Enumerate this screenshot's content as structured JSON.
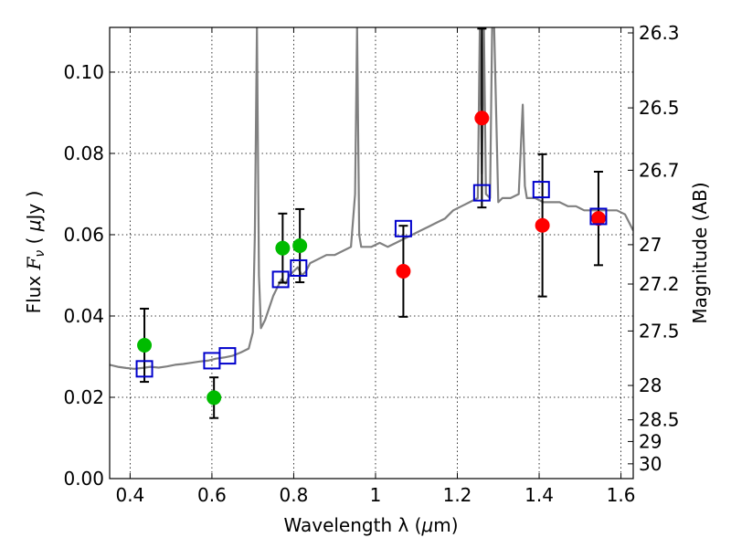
{
  "chart_data": {
    "type": "scatter",
    "title": "",
    "xlabel_prefix": "Wavelength  λ (",
    "xlabel_mu": "μ",
    "xlabel_suffix": "m)",
    "ylabel_prefix": "Flux  ",
    "ylabel_var": "F",
    "ylabel_sub": "ν",
    "ylabel_open": "  (  ",
    "ylabel_mu": "μ",
    "ylabel_suffix": "Jy )",
    "y2label": "Magnitude (AB)",
    "xlim": [
      0.35,
      1.63
    ],
    "ylim": [
      0.0,
      0.111
    ],
    "grid": true,
    "xticks": [
      0.4,
      0.6,
      0.8,
      1.0,
      1.2,
      1.4,
      1.6
    ],
    "xtick_labels": [
      "0.4",
      "0.6",
      "0.8",
      "1",
      "1.2",
      "1.4",
      "1.6"
    ],
    "yticks": [
      0.0,
      0.02,
      0.04,
      0.06,
      0.08,
      0.1
    ],
    "ytick_labels": [
      "0.00",
      "0.02",
      "0.04",
      "0.06",
      "0.08",
      "0.10"
    ],
    "mag_ticks": [
      26.3,
      26.5,
      26.7,
      27,
      27.2,
      27.5,
      28,
      28.5,
      29,
      30
    ],
    "mag_tick_labels": [
      "26.3",
      "26.5",
      "26.7",
      "27",
      "27.2",
      "27.5",
      "28",
      "28.5",
      "29",
      "30"
    ],
    "series": [
      {
        "type": "line",
        "color": "#808080",
        "x": [
          0.35,
          0.37,
          0.39,
          0.41,
          0.43,
          0.45,
          0.47,
          0.49,
          0.51,
          0.53,
          0.55,
          0.57,
          0.59,
          0.61,
          0.63,
          0.65,
          0.67,
          0.69,
          0.7,
          0.705,
          0.71,
          0.715,
          0.72,
          0.73,
          0.74,
          0.75,
          0.76,
          0.77,
          0.78,
          0.79,
          0.8,
          0.81,
          0.82,
          0.83,
          0.84,
          0.86,
          0.88,
          0.9,
          0.92,
          0.94,
          0.95,
          0.955,
          0.96,
          0.965,
          0.97,
          0.99,
          1.01,
          1.03,
          1.05,
          1.07,
          1.09,
          1.11,
          1.13,
          1.15,
          1.17,
          1.19,
          1.21,
          1.23,
          1.25,
          1.255,
          1.26,
          1.265,
          1.27,
          1.28,
          1.285,
          1.29,
          1.3,
          1.31,
          1.33,
          1.35,
          1.36,
          1.365,
          1.37,
          1.39,
          1.41,
          1.43,
          1.45,
          1.47,
          1.49,
          1.51,
          1.53,
          1.55,
          1.57,
          1.59,
          1.61,
          1.63
        ],
        "y": [
          0.028,
          0.0275,
          0.0272,
          0.027,
          0.0272,
          0.0275,
          0.0273,
          0.0276,
          0.028,
          0.0282,
          0.0285,
          0.0288,
          0.029,
          0.0295,
          0.0298,
          0.0302,
          0.031,
          0.032,
          0.036,
          0.06,
          0.111,
          0.05,
          0.037,
          0.039,
          0.042,
          0.045,
          0.047,
          0.049,
          0.048,
          0.05,
          0.051,
          0.052,
          0.05,
          0.051,
          0.053,
          0.054,
          0.055,
          0.055,
          0.056,
          0.057,
          0.07,
          0.111,
          0.06,
          0.057,
          0.057,
          0.057,
          0.058,
          0.057,
          0.058,
          0.059,
          0.06,
          0.061,
          0.062,
          0.063,
          0.064,
          0.066,
          0.067,
          0.068,
          0.069,
          0.111,
          0.075,
          0.111,
          0.07,
          0.069,
          0.111,
          0.111,
          0.068,
          0.069,
          0.069,
          0.07,
          0.092,
          0.072,
          0.069,
          0.069,
          0.068,
          0.068,
          0.068,
          0.067,
          0.067,
          0.066,
          0.066,
          0.066,
          0.066,
          0.066,
          0.065,
          0.061
        ]
      },
      {
        "type": "scatter",
        "marker": "circle",
        "color": "#00bb00",
        "x": [
          0.435,
          0.605,
          0.773,
          0.815
        ],
        "y": [
          0.0328,
          0.0199,
          0.0567,
          0.0573
        ],
        "yerr": [
          0.009,
          0.005,
          0.0085,
          0.009
        ]
      },
      {
        "type": "scatter",
        "marker": "circle",
        "color": "#ff0000",
        "x": [
          1.068,
          1.26,
          1.408,
          1.545
        ],
        "y": [
          0.051,
          0.0887,
          0.0623,
          0.064
        ],
        "yerr": [
          0.0112,
          0.022,
          0.0175,
          0.0115
        ]
      },
      {
        "type": "scatter",
        "marker": "open-square",
        "color": "#0000cc",
        "x": [
          0.435,
          0.6,
          0.638,
          0.768,
          0.812,
          1.068,
          1.26,
          1.405,
          1.545
        ],
        "y": [
          0.027,
          0.029,
          0.0302,
          0.049,
          0.0518,
          0.0615,
          0.0703,
          0.0711,
          0.0645
        ]
      }
    ]
  }
}
